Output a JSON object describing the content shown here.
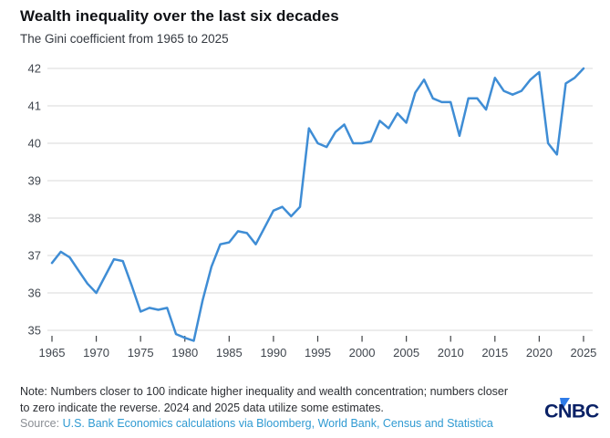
{
  "header": {
    "title": "Wealth inequality over the last six decades",
    "subtitle": "The Gini coefficient from 1965 to 2025"
  },
  "chart_data": {
    "type": "line",
    "title": "Wealth inequality over the last six decades",
    "subtitle": "The Gini coefficient from 1965 to 2025",
    "xlabel": "",
    "ylabel": "",
    "x_years": [
      1965,
      1966,
      1967,
      1968,
      1969,
      1970,
      1971,
      1972,
      1973,
      1974,
      1975,
      1976,
      1977,
      1978,
      1979,
      1980,
      1981,
      1982,
      1983,
      1984,
      1985,
      1986,
      1987,
      1988,
      1989,
      1990,
      1991,
      1992,
      1993,
      1994,
      1995,
      1996,
      1997,
      1998,
      1999,
      2000,
      2001,
      2002,
      2003,
      2004,
      2005,
      2006,
      2007,
      2008,
      2009,
      2010,
      2011,
      2012,
      2013,
      2014,
      2015,
      2016,
      2017,
      2018,
      2019,
      2020,
      2021,
      2022,
      2023,
      2024,
      2025
    ],
    "values": [
      36.8,
      37.1,
      36.95,
      36.6,
      36.25,
      36.0,
      36.45,
      36.9,
      36.85,
      36.2,
      35.5,
      35.6,
      35.55,
      35.6,
      34.9,
      34.8,
      34.72,
      35.8,
      36.7,
      37.3,
      37.35,
      37.65,
      37.6,
      37.3,
      37.75,
      38.2,
      38.3,
      38.05,
      38.3,
      40.4,
      40.0,
      39.9,
      40.3,
      40.5,
      40.0,
      40.0,
      40.05,
      40.6,
      40.4,
      40.8,
      40.55,
      41.35,
      41.7,
      41.2,
      41.1,
      41.1,
      40.2,
      41.2,
      41.2,
      40.9,
      41.75,
      41.4,
      41.3,
      41.4,
      41.7,
      41.9,
      40.0,
      39.7,
      41.6,
      41.75,
      42.0
    ],
    "xticks": [
      1965,
      1970,
      1975,
      1980,
      1985,
      1990,
      1995,
      2000,
      2005,
      2010,
      2015,
      2020,
      2025
    ],
    "yticks": [
      35,
      36,
      37,
      38,
      39,
      40,
      41,
      42
    ],
    "ylim": [
      35,
      42
    ],
    "grid": true,
    "legend": "none",
    "series_name": "Gini coefficient",
    "line_color": "#3F8DD5",
    "grid_color": "#D8D8D8",
    "tick_label_color": "#40464E",
    "tick_mark_color": "#3F4245"
  },
  "footer": {
    "note_line1": "Note: Numbers closer to 100 indicate higher inequality and wealth concentration; numbers closer",
    "note_line2": "to zero indicate the reverse. 2024 and 2025 data utilize some estimates.",
    "source_label": "Source:",
    "source_text": "U.S. Bank Economics calculations via Bloomberg, World Bank, Census and Statistica",
    "logo_text": "CNBC"
  },
  "colors": {
    "logo_navy": "#0A2166",
    "logo_blue": "#2E7BE8",
    "source_link_blue": "#2F9AD2"
  }
}
